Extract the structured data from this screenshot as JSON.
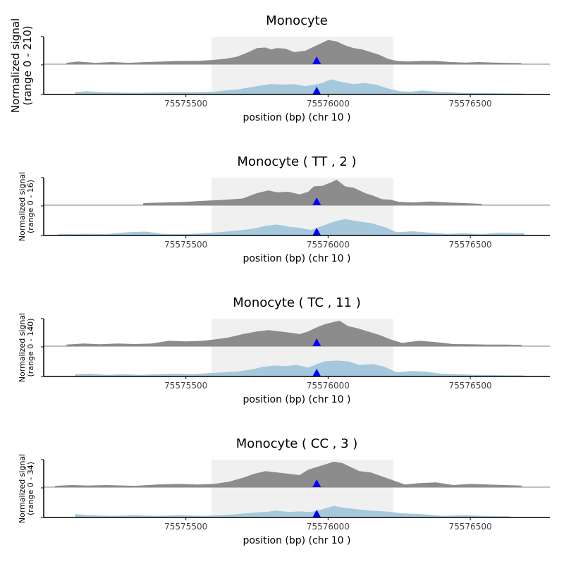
{
  "colors": {
    "top_track": "#8c8c8c",
    "bottom_track": "#a6c8dc",
    "highlight": "#f0f0f0",
    "marker": "#0000ff",
    "axis": "#000000",
    "baseline": "#808080"
  },
  "chart_data": [
    {
      "type": "area",
      "title": "Monocyte",
      "ylabel_line1": "Normalized signal",
      "ylabel_line2": "(range 0 - 210)",
      "xlabel": "position (bp) (chr 10 )",
      "x_ticks": [
        75575500,
        75576000,
        75576500
      ],
      "xlim": [
        75575000,
        75576780
      ],
      "highlight_range": [
        75575590,
        75576230
      ],
      "marker_x": 75575960,
      "series": [
        {
          "track": "top",
          "x": [
            75575080,
            75575120,
            75575180,
            75575240,
            75575300,
            75575360,
            75575420,
            75575480,
            75575540,
            75575590,
            75575640,
            75575680,
            75575720,
            75575750,
            75575780,
            75575800,
            75575820,
            75575850,
            75575880,
            75575920,
            75575950,
            75575970,
            75576000,
            75576030,
            75576060,
            75576090,
            75576120,
            75576150,
            75576180,
            75576210,
            75576240,
            75576280,
            75576330,
            75576380,
            75576430,
            75576480,
            75576530,
            75576580,
            75576630,
            75576680
          ],
          "y": [
            0.05,
            0.1,
            0.05,
            0.08,
            0.05,
            0.08,
            0.1,
            0.12,
            0.12,
            0.15,
            0.2,
            0.28,
            0.45,
            0.6,
            0.62,
            0.55,
            0.6,
            0.58,
            0.45,
            0.5,
            0.65,
            0.75,
            0.9,
            0.85,
            0.7,
            0.6,
            0.55,
            0.45,
            0.35,
            0.2,
            0.12,
            0.1,
            0.12,
            0.12,
            0.08,
            0.06,
            0.08,
            0.06,
            0.05,
            0.04
          ]
        },
        {
          "track": "bottom",
          "x": [
            75575110,
            75575150,
            75575200,
            75575260,
            75575320,
            75575380,
            75575440,
            75575500,
            75575560,
            75575600,
            75575640,
            75575680,
            75575720,
            75575760,
            75575800,
            75575840,
            75575880,
            75575920,
            75575950,
            75575980,
            75576010,
            75576050,
            75576090,
            75576130,
            75576170,
            75576210,
            75576250,
            75576290,
            75576330,
            75576380,
            75576430,
            75576480,
            75576530,
            75576580,
            75576630,
            75576690
          ],
          "y": [
            0.08,
            0.12,
            0.08,
            0.07,
            0.06,
            0.07,
            0.08,
            0.08,
            0.09,
            0.1,
            0.15,
            0.18,
            0.25,
            0.32,
            0.38,
            0.36,
            0.38,
            0.3,
            0.35,
            0.42,
            0.55,
            0.45,
            0.38,
            0.42,
            0.35,
            0.22,
            0.12,
            0.1,
            0.15,
            0.1,
            0.08,
            0.05,
            0.06,
            0.05,
            0.04,
            0.03
          ]
        }
      ]
    },
    {
      "type": "area",
      "title": "Monocyte ( TT , 2 )",
      "ylabel_line1": "Normalized signal",
      "ylabel_line2": "(range 0 - 16)",
      "xlabel": "position (bp) (chr 10 )",
      "x_ticks": [
        75575500,
        75576000,
        75576500
      ],
      "xlim": [
        75575000,
        75576780
      ],
      "highlight_range": [
        75575590,
        75576230
      ],
      "marker_x": 75575960,
      "series": [
        {
          "track": "top",
          "x": [
            75575350,
            75575420,
            75575500,
            75575540,
            75575590,
            75575640,
            75575700,
            75575750,
            75575790,
            75575820,
            75575860,
            75575900,
            75575930,
            75575950,
            75575980,
            75576010,
            75576030,
            75576060,
            75576090,
            75576130,
            75576160,
            75576190,
            75576220,
            75576250,
            75576300,
            75576360,
            75576420,
            75576480,
            75576540
          ],
          "y": [
            0.08,
            0.1,
            0.12,
            0.15,
            0.18,
            0.2,
            0.25,
            0.45,
            0.55,
            0.48,
            0.5,
            0.4,
            0.5,
            0.7,
            0.72,
            0.85,
            0.95,
            0.7,
            0.65,
            0.45,
            0.35,
            0.22,
            0.2,
            0.12,
            0.1,
            0.14,
            0.1,
            0.08,
            0.05
          ]
        },
        {
          "track": "bottom",
          "x": [
            75575050,
            75575140,
            75575220,
            75575300,
            75575360,
            75575420,
            75575500,
            75575560,
            75575620,
            75575680,
            75575740,
            75575780,
            75575820,
            75575860,
            75575900,
            75575940,
            75575980,
            75576020,
            75576060,
            75576100,
            75576150,
            75576200,
            75576240,
            75576300,
            75576360,
            75576420,
            75576480,
            75576540,
            75576600,
            75576690
          ],
          "y": [
            0.05,
            0.06,
            0.05,
            0.12,
            0.14,
            0.06,
            0.05,
            0.08,
            0.12,
            0.18,
            0.25,
            0.35,
            0.4,
            0.32,
            0.28,
            0.2,
            0.35,
            0.5,
            0.6,
            0.52,
            0.45,
            0.3,
            0.12,
            0.15,
            0.1,
            0.06,
            0.08,
            0.05,
            0.1,
            0.08
          ]
        }
      ]
    },
    {
      "type": "area",
      "title": "Monocyte ( TC , 11 )",
      "ylabel_line1": "Normalized signal",
      "ylabel_line2": "(range 0 - 140)",
      "xlabel": "position (bp) (chr 10 )",
      "x_ticks": [
        75575500,
        75576000,
        75576500
      ],
      "xlim": [
        75575000,
        75576780
      ],
      "highlight_range": [
        75575590,
        75576230
      ],
      "marker_x": 75575960,
      "series": [
        {
          "track": "top",
          "x": [
            75575080,
            75575140,
            75575200,
            75575260,
            75575320,
            75575380,
            75575440,
            75575500,
            75575560,
            75575600,
            75575650,
            75575700,
            75575750,
            75575790,
            75575830,
            75575870,
            75575900,
            75575930,
            75575960,
            75575990,
            75576020,
            75576040,
            75576070,
            75576100,
            75576140,
            75576180,
            75576220,
            75576260,
            75576320,
            75576380,
            75576440,
            75576500,
            75576560,
            75576620,
            75576680
          ],
          "y": [
            0.06,
            0.1,
            0.07,
            0.1,
            0.08,
            0.1,
            0.2,
            0.18,
            0.2,
            0.25,
            0.32,
            0.45,
            0.55,
            0.6,
            0.55,
            0.5,
            0.45,
            0.55,
            0.7,
            0.82,
            0.9,
            0.95,
            0.75,
            0.68,
            0.55,
            0.42,
            0.25,
            0.12,
            0.2,
            0.15,
            0.08,
            0.07,
            0.06,
            0.06,
            0.05
          ]
        },
        {
          "track": "bottom",
          "x": [
            75575110,
            75575160,
            75575220,
            75575280,
            75575340,
            75575400,
            75575460,
            75575520,
            75575580,
            75575630,
            75575680,
            75575730,
            75575770,
            75575810,
            75575850,
            75575890,
            75575930,
            75575960,
            75575990,
            75576030,
            75576070,
            75576110,
            75576160,
            75576200,
            75576240,
            75576290,
            75576340,
            75576400,
            75576460,
            75576520,
            75576580,
            75576640,
            75576690
          ],
          "y": [
            0.08,
            0.1,
            0.06,
            0.08,
            0.06,
            0.08,
            0.1,
            0.08,
            0.12,
            0.15,
            0.18,
            0.25,
            0.35,
            0.4,
            0.38,
            0.42,
            0.32,
            0.45,
            0.55,
            0.58,
            0.55,
            0.42,
            0.45,
            0.35,
            0.15,
            0.2,
            0.18,
            0.1,
            0.08,
            0.06,
            0.05,
            0.04,
            0.04
          ]
        }
      ]
    },
    {
      "type": "area",
      "title": "Monocyte ( CC , 3 )",
      "ylabel_line1": "Normalized signal",
      "ylabel_line2": "(range 0 - 34)",
      "xlabel": "position (bp) (chr 10 )",
      "x_ticks": [
        75575500,
        75576000,
        75576500
      ],
      "xlim": [
        75575000,
        75576780
      ],
      "highlight_range": [
        75575590,
        75576230
      ],
      "marker_x": 75575960,
      "series": [
        {
          "track": "top",
          "x": [
            75575040,
            75575100,
            75575160,
            75575220,
            75575320,
            75575400,
            75575480,
            75575540,
            75575600,
            75575650,
            75575700,
            75575740,
            75575780,
            75575820,
            75575860,
            75575900,
            75575930,
            75575960,
            75575990,
            75576020,
            75576050,
            75576080,
            75576110,
            75576150,
            75576190,
            75576230,
            75576270,
            75576320,
            75576380,
            75576440,
            75576500,
            75576560,
            75576620,
            75576680
          ],
          "y": [
            0.05,
            0.08,
            0.06,
            0.08,
            0.05,
            0.1,
            0.12,
            0.1,
            0.12,
            0.2,
            0.35,
            0.5,
            0.6,
            0.55,
            0.5,
            0.45,
            0.65,
            0.75,
            0.85,
            0.95,
            0.9,
            0.75,
            0.6,
            0.55,
            0.4,
            0.25,
            0.1,
            0.15,
            0.18,
            0.08,
            0.12,
            0.1,
            0.08,
            0.06
          ]
        },
        {
          "track": "bottom",
          "x": [
            75575110,
            75575160,
            75575240,
            75575320,
            75575400,
            75575480,
            75575560,
            75575620,
            75575680,
            75575740,
            75575780,
            75575820,
            75575860,
            75575900,
            75575940,
            75575980,
            75576020,
            75576060,
            75576100,
            75576150,
            75576200,
            75576260,
            75576330,
            75576400,
            75576480,
            75576560,
            75576640
          ],
          "y": [
            0.12,
            0.08,
            0.06,
            0.08,
            0.06,
            0.08,
            0.06,
            0.08,
            0.12,
            0.18,
            0.2,
            0.25,
            0.2,
            0.22,
            0.2,
            0.3,
            0.42,
            0.35,
            0.3,
            0.25,
            0.22,
            0.15,
            0.12,
            0.06,
            0.08,
            0.05,
            0.04
          ]
        }
      ]
    }
  ]
}
